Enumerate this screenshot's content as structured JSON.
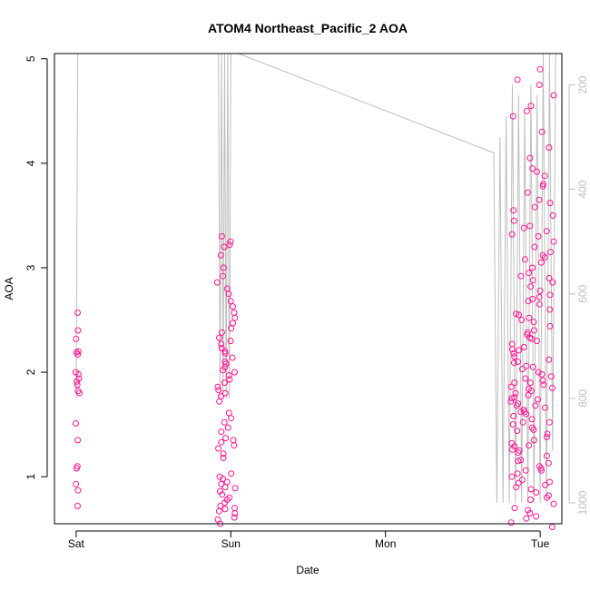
{
  "chart_data": {
    "type": "scatter",
    "title": "ATOM4 Northeast_Pacific_2 AOA",
    "xlabel": "Date",
    "ylabel": "AOA",
    "x_tick_labels": [
      "Sat",
      "Sun",
      "Mon",
      "Tue"
    ],
    "xlim_days": [
      -0.14,
      3.14
    ],
    "ylim": [
      0.55,
      5.05
    ],
    "y_ticks": [
      1,
      2,
      3,
      4,
      5
    ],
    "right_axis_ticks": [
      200,
      400,
      600,
      800,
      1000
    ],
    "right_axis_range": [
      140,
      1040
    ],
    "colors": {
      "points": "#ff1493",
      "altitude_line": "#bebebe",
      "axis": "#000000"
    },
    "series": [
      {
        "kind": "points",
        "groups": [
          {
            "center_day": 0.01,
            "spread": 0.015,
            "values": [
              0.72,
              0.87,
              0.93,
              1.08,
              1.1,
              1.35,
              1.51,
              1.8,
              1.82,
              1.88,
              1.91,
              1.94,
              1.98,
              2.0,
              2.17,
              2.19,
              2.2,
              2.32,
              2.4,
              2.57
            ]
          },
          {
            "center_day": 0.97,
            "spread": 0.06,
            "values": [
              0.55,
              0.59,
              0.61,
              0.65,
              0.67,
              0.69,
              0.7,
              0.72,
              0.75,
              0.78,
              0.8,
              0.83,
              0.86,
              0.89,
              0.9,
              0.93,
              0.95,
              0.98,
              1.0,
              1.03,
              1.18,
              1.22,
              1.27,
              1.3,
              1.33,
              1.35,
              1.37,
              1.43,
              1.47,
              1.52,
              1.56,
              1.61,
              1.72,
              1.77,
              1.8,
              1.83,
              1.86,
              1.9,
              1.93,
              1.97,
              2.0,
              2.02,
              2.05,
              2.08,
              2.1,
              2.14,
              2.18,
              2.2,
              2.23,
              2.27,
              2.3,
              2.33,
              2.38,
              2.42,
              2.47,
              2.52,
              2.57,
              2.63,
              2.68,
              2.75,
              2.8,
              2.86,
              2.92,
              3.0,
              3.12,
              3.2,
              3.22,
              3.25,
              3.3
            ]
          },
          {
            "center_day": 2.95,
            "spread": 0.14,
            "values": [
              0.52,
              0.56,
              0.6,
              0.62,
              0.65,
              0.7,
              0.74,
              0.78,
              0.82,
              0.85,
              0.88,
              0.9,
              0.92,
              0.95,
              0.97,
              1.0,
              1.03,
              1.06,
              1.08,
              1.1,
              1.13,
              1.16,
              1.2,
              1.23,
              1.26,
              1.29,
              1.32,
              1.35,
              1.38,
              1.41,
              1.44,
              1.47,
              1.5,
              1.52,
              1.55,
              1.58,
              1.6,
              1.62,
              1.64,
              1.66,
              1.68,
              1.7,
              1.72,
              1.74,
              1.76,
              1.78,
              1.8,
              1.82,
              1.84,
              1.86,
              1.88,
              1.9,
              1.92,
              1.94,
              1.96,
              1.98,
              2.0,
              2.03,
              2.06,
              2.09,
              2.12,
              2.15,
              2.18,
              2.21,
              2.24,
              2.27,
              2.3,
              2.33,
              2.36,
              2.4,
              2.44,
              2.48,
              2.52,
              2.56,
              2.6,
              2.65,
              2.7,
              2.74,
              2.78,
              2.82,
              2.86,
              2.9,
              2.95,
              3.0,
              3.05,
              3.1,
              3.15,
              3.2,
              3.25,
              3.3,
              3.35,
              3.4,
              3.45,
              3.5,
              3.58,
              3.65,
              3.72,
              3.8,
              3.88,
              3.95,
              4.05,
              4.15,
              4.3,
              4.45,
              4.5,
              4.55,
              4.65,
              4.75,
              4.8,
              4.9,
              1.15,
              1.25,
              1.45,
              1.62,
              1.75,
              1.85,
              2.05,
              2.22,
              2.38,
              2.55,
              2.72,
              2.92,
              3.12,
              3.38,
              3.62,
              3.92,
              0.68,
              0.8,
              0.94,
              1.06,
              1.3,
              1.52,
              1.68,
              1.9,
              2.1,
              2.32,
              2.5,
              2.68,
              2.88,
              3.08,
              3.32,
              3.55,
              3.78
            ]
          }
        ]
      },
      {
        "kind": "altitude_line",
        "axis": "right",
        "path": [
          [
            0.0,
            800
          ],
          [
            0.01,
            140
          ],
          [
            0.02,
            140
          ],
          [
            0.9,
            140
          ],
          [
            0.92,
            140
          ],
          [
            0.93,
            800
          ],
          [
            0.94,
            140
          ],
          [
            0.95,
            800
          ],
          [
            0.96,
            140
          ],
          [
            0.97,
            800
          ],
          [
            0.98,
            140
          ],
          [
            0.99,
            800
          ],
          [
            1.0,
            140
          ],
          [
            1.05,
            140
          ],
          [
            2.7,
            330
          ],
          [
            2.72,
            1000
          ],
          [
            2.74,
            300
          ],
          [
            2.76,
            1000
          ],
          [
            2.78,
            260
          ],
          [
            2.8,
            1000
          ],
          [
            2.82,
            200
          ],
          [
            2.84,
            1000
          ],
          [
            2.86,
            220
          ],
          [
            2.88,
            1000
          ],
          [
            2.9,
            250
          ],
          [
            2.92,
            1000
          ],
          [
            2.94,
            200
          ],
          [
            2.96,
            1000
          ],
          [
            2.98,
            220
          ],
          [
            3.0,
            1000
          ],
          [
            3.02,
            140
          ],
          [
            3.04,
            1000
          ],
          [
            3.06,
            140
          ],
          [
            3.08,
            900
          ],
          [
            3.1,
            140
          ]
        ]
      }
    ]
  }
}
